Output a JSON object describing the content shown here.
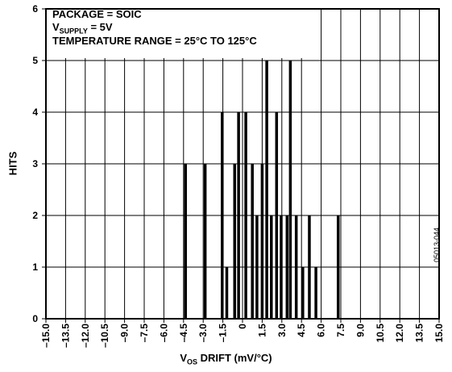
{
  "chart_data": {
    "type": "bar",
    "annotation_lines": [
      {
        "prefix": "PACKAGE = SOIC",
        "sub": "",
        "suffix": ""
      },
      {
        "prefix": "V",
        "sub": "SUPPLY",
        "suffix": " = 5V"
      },
      {
        "prefix": "TEMPERATURE RANGE = 25°C TO 125°C",
        "sub": "",
        "suffix": ""
      }
    ],
    "xlabel_prefix": "V",
    "xlabel_sub": "OS",
    "xlabel_suffix": " DRIFT (mV/°C)",
    "ylabel": "HITS",
    "figure_code": "05013-044",
    "xlim": [
      -15,
      15
    ],
    "ylim": [
      0,
      6
    ],
    "grid": true,
    "x_ticks": [
      -15,
      -13.5,
      -12,
      -10.5,
      -9,
      -7.5,
      -6,
      -4.5,
      -3,
      -1.5,
      0,
      1.5,
      3,
      4.5,
      6,
      7.5,
      9,
      10.5,
      12,
      13.5,
      15
    ],
    "x_tick_labels": [
      "–15.0",
      "–13.5",
      "–12.0",
      "–10.5",
      "–9.0",
      "–7.5",
      "–6.0",
      "–4.5",
      "–3.0",
      "–1.5",
      "0",
      "1.5",
      "3.0",
      "4.5",
      "6.0",
      "7.5",
      "9.0",
      "10.5",
      "12.0",
      "13.5",
      "15.0"
    ],
    "y_ticks": [
      0,
      1,
      2,
      3,
      4,
      5,
      6
    ],
    "y_tick_labels": [
      "0",
      "1",
      "2",
      "3",
      "4",
      "5",
      "6"
    ],
    "points": [
      {
        "x": -4.35,
        "y": 3
      },
      {
        "x": -2.85,
        "y": 3
      },
      {
        "x": -1.55,
        "y": 4
      },
      {
        "x": -1.2,
        "y": 1
      },
      {
        "x": -0.6,
        "y": 3
      },
      {
        "x": -0.3,
        "y": 4
      },
      {
        "x": 0.25,
        "y": 4
      },
      {
        "x": 0.75,
        "y": 3
      },
      {
        "x": 1.1,
        "y": 2
      },
      {
        "x": 1.5,
        "y": 3
      },
      {
        "x": 1.85,
        "y": 5
      },
      {
        "x": 2.2,
        "y": 2
      },
      {
        "x": 2.6,
        "y": 4
      },
      {
        "x": 2.95,
        "y": 2
      },
      {
        "x": 3.4,
        "y": 2
      },
      {
        "x": 3.65,
        "y": 5
      },
      {
        "x": 4.1,
        "y": 2
      },
      {
        "x": 4.6,
        "y": 1
      },
      {
        "x": 5.1,
        "y": 2
      },
      {
        "x": 5.6,
        "y": 1
      },
      {
        "x": 7.3,
        "y": 2
      }
    ]
  }
}
